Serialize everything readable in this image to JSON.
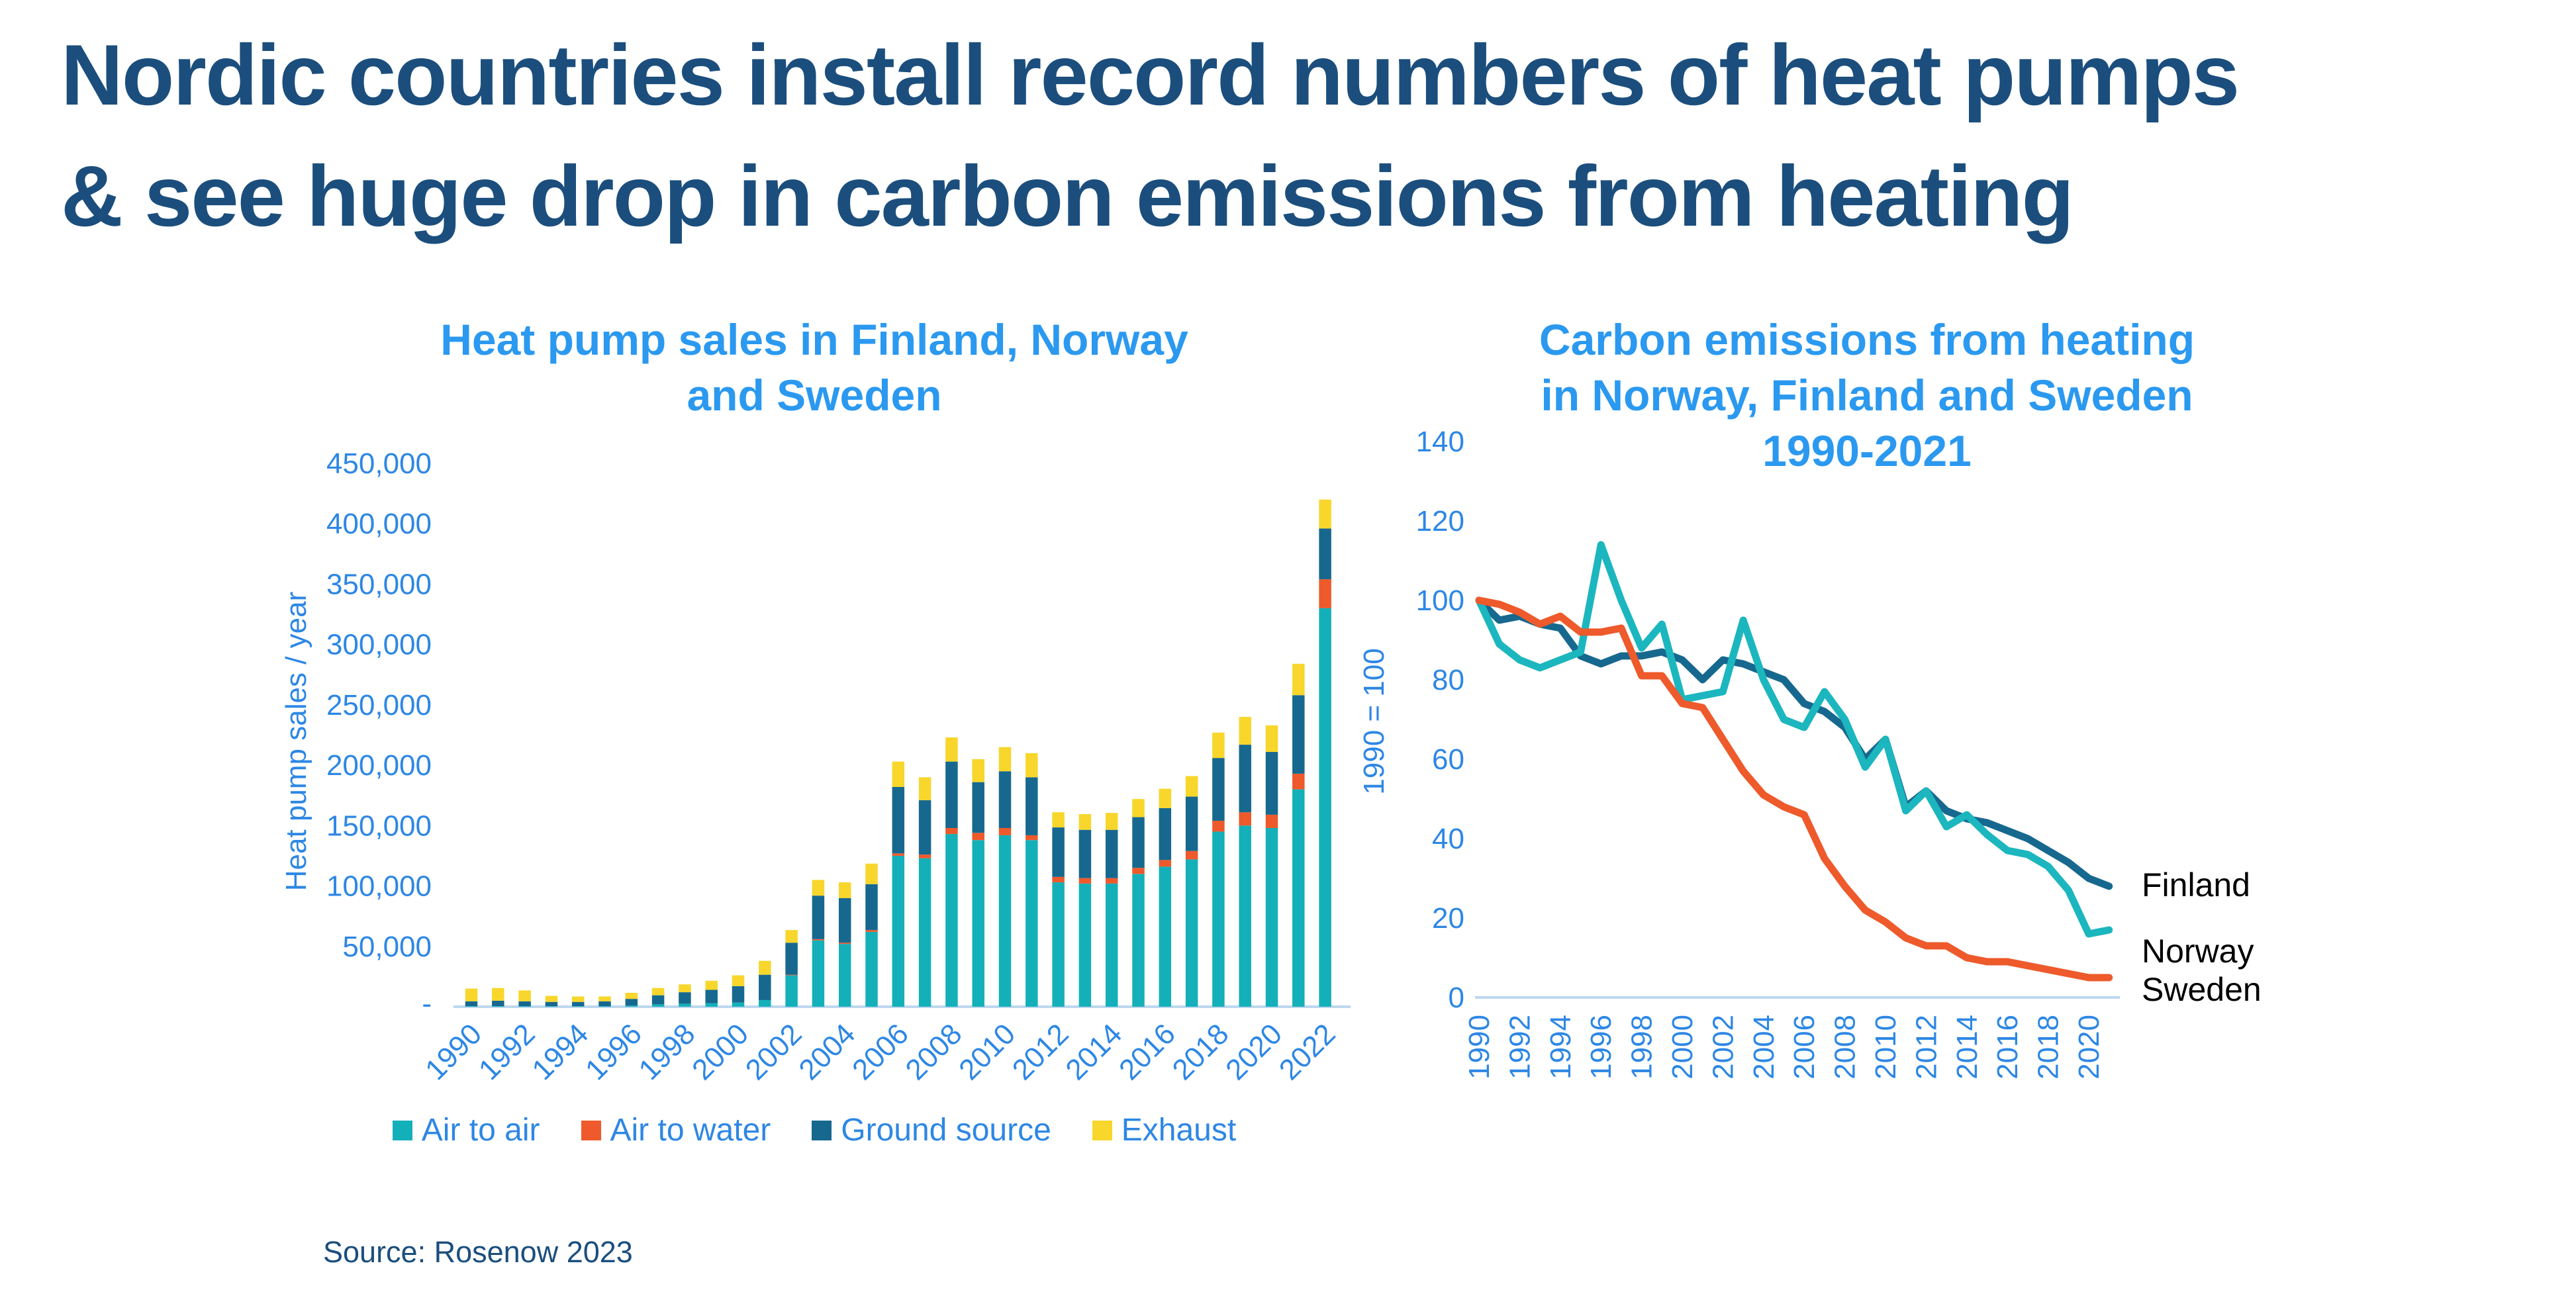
{
  "page": {
    "title_line1": "Nordic countries install record numbers of heat pumps",
    "title_line2": "& see huge drop in carbon emissions from heating",
    "source": "Source: Rosenow 2023"
  },
  "colors": {
    "navy": "#1b4e7d",
    "bright_blue": "#2b99f0",
    "axis_blue": "#2d87e4",
    "baseline_light_blue": "#bdd7ee",
    "air_to_air_teal": "#14b0ba",
    "air_to_water_orange": "#ee5a2b",
    "ground_source_blue": "#17688f",
    "exhaust_yellow": "#f8d62b",
    "finland_line": "#17688f",
    "norway_line": "#1cb6bf",
    "sweden_line": "#ee5a2b"
  },
  "chart_data": [
    {
      "type": "bar",
      "stacked": true,
      "title": "Heat pump sales in Finland, Norway and Sweden",
      "title_lines": [
        "Heat pump sales in Finland, Norway",
        "and Sweden"
      ],
      "ylabel": "Heat pump sales / year",
      "ylim": [
        0,
        450000
      ],
      "ytick_step": 50000,
      "zero_tick_label": "-",
      "xtick_step": 2,
      "grid": false,
      "legend_position": "bottom",
      "categories": [
        1990,
        1991,
        1992,
        1993,
        1994,
        1995,
        1996,
        1997,
        1998,
        1999,
        2000,
        2001,
        2002,
        2003,
        2004,
        2005,
        2006,
        2007,
        2008,
        2009,
        2010,
        2011,
        2012,
        2013,
        2014,
        2015,
        2016,
        2017,
        2018,
        2019,
        2020,
        2021,
        2022
      ],
      "series": [
        {
          "name": "Air to air",
          "color": "#14b0ba",
          "values": [
            500,
            500,
            500,
            500,
            500,
            500,
            1000,
            2000,
            2500,
            3000,
            3500,
            5500,
            26000,
            55000,
            52000,
            62000,
            125000,
            123000,
            143000,
            138000,
            142000,
            138000,
            103000,
            102000,
            102000,
            110000,
            116000,
            122000,
            145000,
            150000,
            148000,
            180000,
            330000
          ]
        },
        {
          "name": "Air to water",
          "color": "#ee5a2b",
          "values": [
            0,
            0,
            0,
            0,
            0,
            0,
            0,
            0,
            0,
            0,
            0,
            0,
            500,
            1000,
            1000,
            1500,
            2000,
            3000,
            5000,
            6000,
            6000,
            4000,
            4500,
            4500,
            4500,
            5000,
            5500,
            7000,
            9000,
            11000,
            11000,
            13000,
            24000
          ]
        },
        {
          "name": "Ground source",
          "color": "#17688f",
          "values": [
            4000,
            4500,
            4000,
            3500,
            3500,
            4000,
            5500,
            7500,
            9500,
            11000,
            13500,
            21000,
            26500,
            36000,
            37000,
            38000,
            55000,
            45000,
            55000,
            42000,
            47000,
            48000,
            41000,
            40000,
            40000,
            42000,
            43000,
            45000,
            52000,
            56000,
            52000,
            65000,
            42000
          ]
        },
        {
          "name": "Exhaust",
          "color": "#f8d62b",
          "values": [
            10500,
            10500,
            9000,
            5000,
            4500,
            4000,
            5000,
            6000,
            6500,
            7500,
            9000,
            11500,
            10500,
            13000,
            13000,
            17000,
            21000,
            19000,
            20000,
            19000,
            20000,
            20000,
            12500,
            13000,
            14000,
            15000,
            16000,
            17000,
            21000,
            23000,
            22000,
            26000,
            24000
          ]
        }
      ]
    },
    {
      "type": "line",
      "title": "Carbon emissions from heating in Norway, Finland and Sweden 1990-2021",
      "title_lines": [
        "Carbon emissions from heating",
        "in Norway, Finland and Sweden",
        "1990-2021"
      ],
      "ylabel": "1990 = 100",
      "ylim": [
        0,
        140
      ],
      "ytick_step": 20,
      "xtick_step": 2,
      "grid": false,
      "legend_position": "right-end-labels",
      "x": [
        1990,
        1991,
        1992,
        1993,
        1994,
        1995,
        1996,
        1997,
        1998,
        1999,
        2000,
        2001,
        2002,
        2003,
        2004,
        2005,
        2006,
        2007,
        2008,
        2009,
        2010,
        2011,
        2012,
        2013,
        2014,
        2015,
        2016,
        2017,
        2018,
        2019,
        2020,
        2021
      ],
      "series": [
        {
          "name": "Finland",
          "color": "#17688f",
          "values": [
            100,
            95,
            96,
            94,
            93,
            86,
            84,
            86,
            86,
            87,
            85,
            80,
            85,
            84,
            82,
            80,
            74,
            72,
            68,
            60,
            65,
            48,
            52,
            47,
            45,
            44,
            42,
            40,
            37,
            34,
            30,
            28
          ]
        },
        {
          "name": "Norway",
          "color": "#1cb6bf",
          "values": [
            100,
            89,
            85,
            83,
            85,
            87,
            114,
            100,
            88,
            94,
            75,
            76,
            77,
            95,
            80,
            70,
            68,
            77,
            70,
            58,
            65,
            47,
            52,
            43,
            46,
            41,
            37,
            36,
            33,
            27,
            16,
            17
          ]
        },
        {
          "name": "Sweden",
          "color": "#ee5a2b",
          "values": [
            100,
            99,
            97,
            94,
            96,
            92,
            92,
            93,
            81,
            81,
            74,
            73,
            65,
            57,
            51,
            48,
            46,
            35,
            28,
            22,
            19,
            15,
            13,
            13,
            10,
            9,
            9,
            8,
            7,
            6,
            5,
            5
          ]
        }
      ]
    }
  ]
}
